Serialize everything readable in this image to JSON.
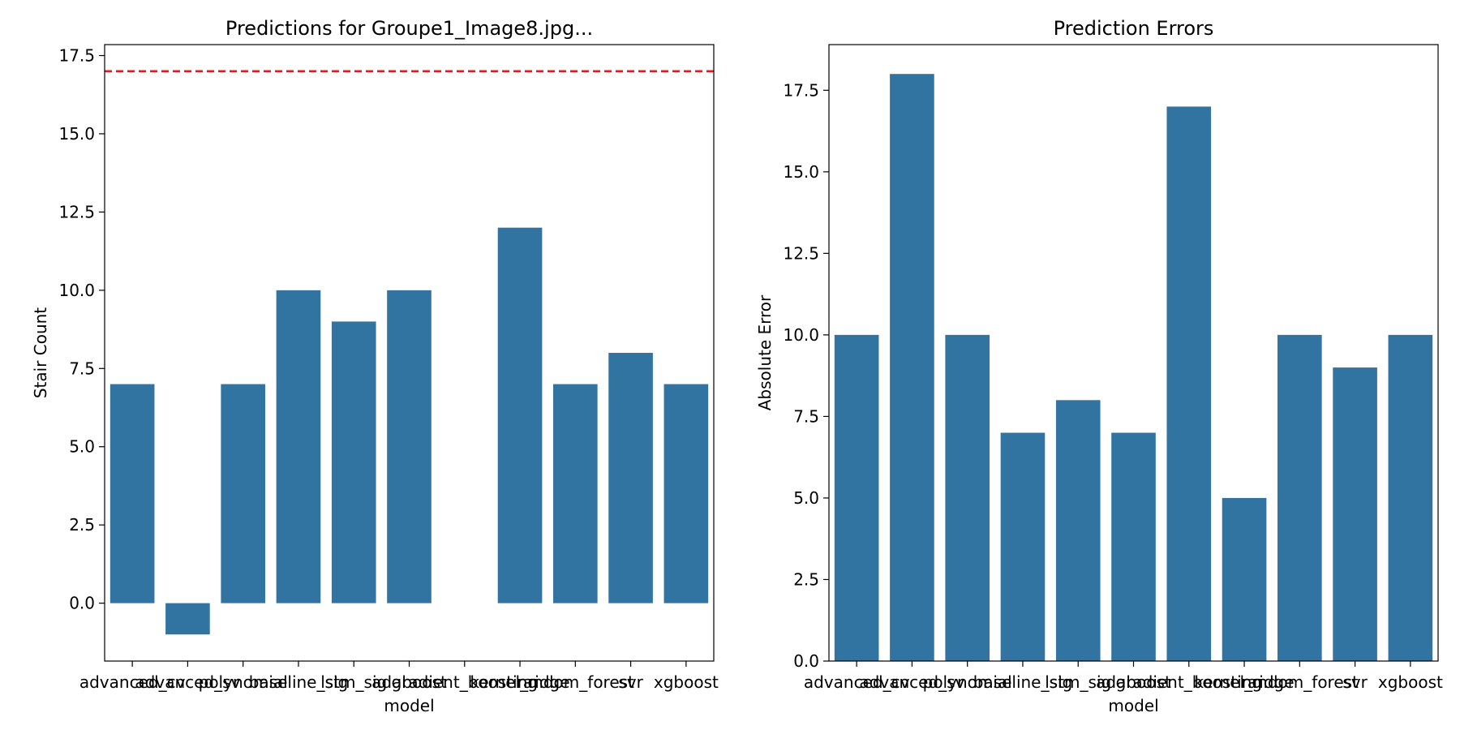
{
  "chart_data": [
    {
      "type": "bar",
      "title": "Predictions for Groupe1_Image8.jpg...",
      "xlabel": "model",
      "ylabel": "Stair Count",
      "categories": [
        "advanced_cv",
        "advanced_sv",
        "polynomial",
        "baseline_sig",
        "lstm_sig",
        "adaboost",
        "gradient_boosting",
        "kernel_ridge",
        "random_forest",
        "svr",
        "xgboost"
      ],
      "values": [
        7,
        -1,
        7,
        10,
        9,
        10,
        0,
        12,
        7,
        8,
        7
      ],
      "ylim": [
        -1.85,
        17.85
      ],
      "yticks": [
        "0.0",
        "2.5",
        "5.0",
        "7.5",
        "10.0",
        "12.5",
        "15.0",
        "17.5"
      ],
      "reference_line": {
        "value": 17,
        "color": "#e41a1c",
        "style": "dashed"
      },
      "bar_color": "#3274a1",
      "grid": false
    },
    {
      "type": "bar",
      "title": "Prediction Errors",
      "xlabel": "model",
      "ylabel": "Absolute Error",
      "categories": [
        "advanced_cv",
        "advanced_sv",
        "polynomial",
        "baseline_sig",
        "lstm_sig",
        "adaboost",
        "gradient_boosting",
        "kernel_ridge",
        "random_forest",
        "svr",
        "xgboost"
      ],
      "values": [
        10,
        18,
        10,
        7,
        8,
        7,
        17,
        5,
        10,
        9,
        10
      ],
      "ylim": [
        0,
        18.9
      ],
      "yticks": [
        "0.0",
        "2.5",
        "5.0",
        "7.5",
        "10.0",
        "12.5",
        "15.0",
        "17.5"
      ],
      "bar_color": "#3274a1",
      "grid": false
    }
  ]
}
